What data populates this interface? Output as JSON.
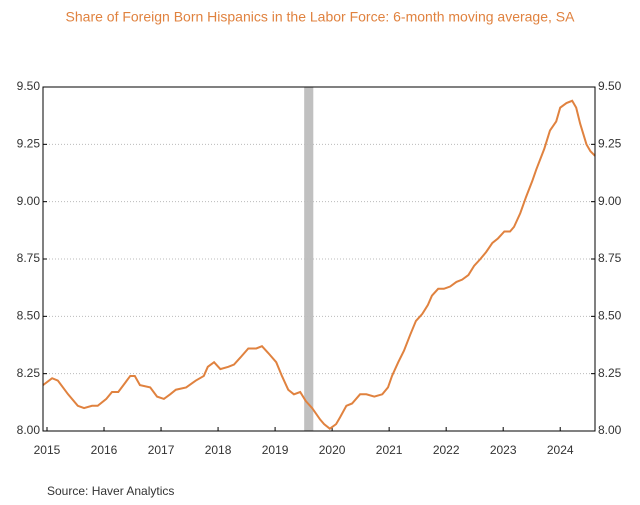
{
  "chart_data": {
    "type": "line",
    "title": "Share of Foreign Born Hispanics in the Labor Force: 6-month moving average, SA",
    "source": "Source:  Haver Analytics",
    "x": [
      2014.93,
      2015.09,
      2015.19,
      2015.37,
      2015.54,
      2015.65,
      2015.79,
      2015.89,
      2016.04,
      2016.14,
      2016.25,
      2016.37,
      2016.46,
      2016.54,
      2016.63,
      2016.81,
      2016.93,
      2017.05,
      2017.16,
      2017.26,
      2017.44,
      2017.61,
      2017.75,
      2017.82,
      2017.93,
      2018.04,
      2018.18,
      2018.28,
      2018.39,
      2018.53,
      2018.67,
      2018.77,
      2018.88,
      2019.02,
      2019.12,
      2019.23,
      2019.33,
      2019.44,
      2019.54,
      2019.65,
      2019.79,
      2019.86,
      2019.96,
      2020.07,
      2020.14,
      2020.25,
      2020.35,
      2020.49,
      2020.6,
      2020.74,
      2020.88,
      2020.98,
      2021.05,
      2021.16,
      2021.26,
      2021.37,
      2021.47,
      2021.58,
      2021.68,
      2021.75,
      2021.86,
      2021.96,
      2022.07,
      2022.18,
      2022.28,
      2022.39,
      2022.49,
      2022.6,
      2022.7,
      2022.81,
      2022.91,
      2023.02,
      2023.12,
      2023.19,
      2023.3,
      2023.4,
      2023.51,
      2023.58,
      2023.72,
      2023.82,
      2023.93,
      2024.0,
      2024.11,
      2024.21,
      2024.28,
      2024.35,
      2024.46,
      2024.53,
      2024.61
    ],
    "series": [
      {
        "color": "#e0823f",
        "values": [
          8.2,
          8.23,
          8.22,
          8.16,
          8.11,
          8.1,
          8.11,
          8.11,
          8.14,
          8.17,
          8.17,
          8.21,
          8.24,
          8.24,
          8.2,
          8.19,
          8.15,
          8.14,
          8.16,
          8.18,
          8.19,
          8.22,
          8.24,
          8.28,
          8.3,
          8.27,
          8.28,
          8.29,
          8.32,
          8.36,
          8.36,
          8.37,
          8.34,
          8.3,
          8.24,
          8.18,
          8.16,
          8.17,
          8.13,
          8.1,
          8.05,
          8.03,
          8.01,
          8.03,
          8.06,
          8.11,
          8.12,
          8.16,
          8.16,
          8.15,
          8.16,
          8.19,
          8.24,
          8.3,
          8.35,
          8.42,
          8.48,
          8.51,
          8.55,
          8.59,
          8.62,
          8.62,
          8.63,
          8.65,
          8.66,
          8.68,
          8.72,
          8.75,
          8.78,
          8.82,
          8.84,
          8.87,
          8.87,
          8.89,
          8.95,
          9.02,
          9.09,
          9.14,
          9.23,
          9.31,
          9.35,
          9.41,
          9.43,
          9.44,
          9.41,
          9.34,
          9.25,
          9.22,
          9.2
        ]
      }
    ],
    "shaded_regions": [
      [
        2019.51,
        2019.67
      ]
    ],
    "shade_color": "#c0c0c0",
    "xlim": [
      2014.93,
      2024.61
    ],
    "xticks": [
      2015,
      2016,
      2017,
      2018,
      2019,
      2020,
      2021,
      2022,
      2023,
      2024
    ],
    "ylim": [
      8,
      9.5
    ],
    "yticks": [
      {
        "value": 8,
        "label": "8.00"
      },
      {
        "value": 8.25,
        "label": "8.25"
      },
      {
        "value": 8.5,
        "label": "8.50"
      },
      {
        "value": 8.75,
        "label": "8.75"
      },
      {
        "value": 9,
        "label": "9.00"
      },
      {
        "value": 9.25,
        "label": "9.25"
      },
      {
        "value": 9.5,
        "label": "9.50"
      }
    ],
    "grid": true
  }
}
